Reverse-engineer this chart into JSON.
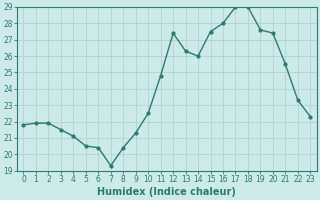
{
  "x": [
    0,
    1,
    2,
    3,
    4,
    5,
    6,
    7,
    8,
    9,
    10,
    11,
    12,
    13,
    14,
    15,
    16,
    17,
    18,
    19,
    20,
    21,
    22,
    23
  ],
  "y": [
    21.8,
    21.9,
    21.9,
    21.5,
    21.1,
    20.5,
    20.4,
    19.3,
    20.4,
    21.3,
    22.5,
    24.8,
    27.4,
    26.3,
    26.0,
    27.5,
    28.0,
    29.0,
    29.0,
    27.6,
    27.4,
    25.5,
    23.3,
    22.3
  ],
  "line_color": "#2d7b6e",
  "marker": "o",
  "marker_size": 2.0,
  "bg_color": "#cceae7",
  "grid_color": "#b0d4d0",
  "xlabel": "Humidex (Indice chaleur)",
  "ylim": [
    19,
    29
  ],
  "xlim": [
    -0.5,
    23.5
  ],
  "yticks": [
    19,
    20,
    21,
    22,
    23,
    24,
    25,
    26,
    27,
    28,
    29
  ],
  "xticks": [
    0,
    1,
    2,
    3,
    4,
    5,
    6,
    7,
    8,
    9,
    10,
    11,
    12,
    13,
    14,
    15,
    16,
    17,
    18,
    19,
    20,
    21,
    22,
    23
  ],
  "tick_label_fontsize": 5.5,
  "xlabel_fontsize": 7.0,
  "line_width": 1.0
}
